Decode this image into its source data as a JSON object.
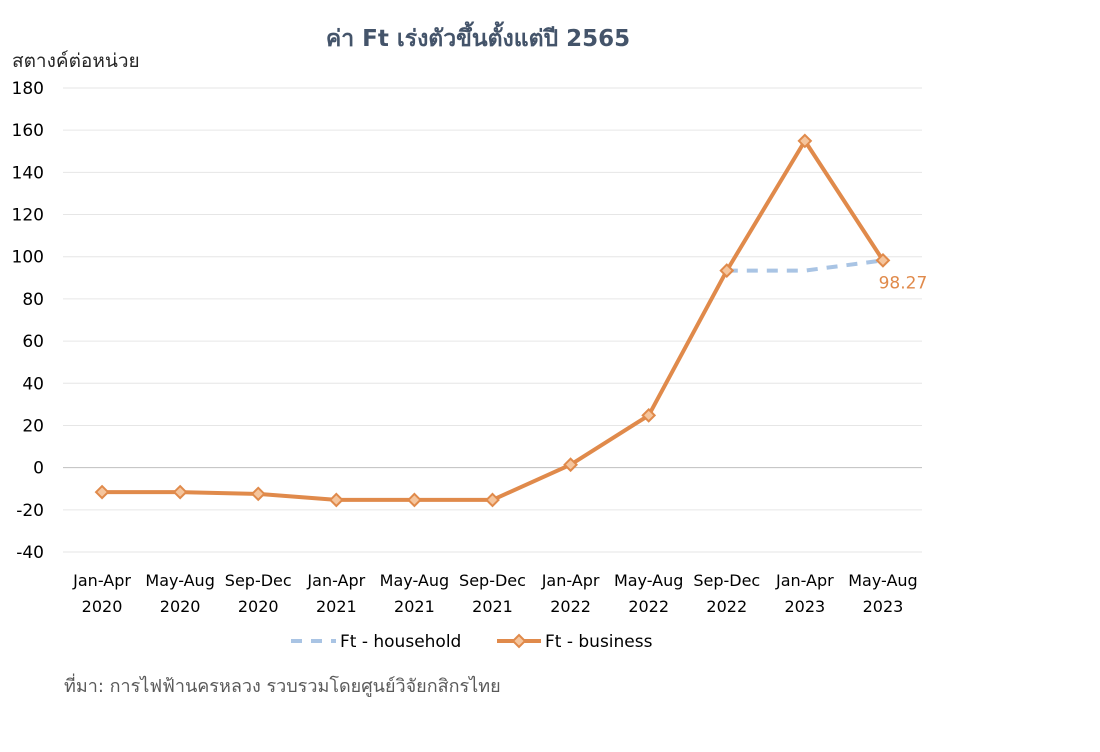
{
  "chart_data": {
    "type": "line",
    "title": "ค่า Ft เร่งตัวขึ้นตั้งแต่ปี 2565",
    "ylabel": "สตางค์ต่อหน่วย",
    "ylim": [
      -40,
      180
    ],
    "yticks": [
      -40,
      -20,
      0,
      20,
      40,
      60,
      80,
      100,
      120,
      140,
      160,
      180
    ],
    "grid": true,
    "legend_position": "bottom",
    "categories": [
      [
        "Jan-Apr",
        "2020"
      ],
      [
        "May-Aug",
        "2020"
      ],
      [
        "Sep-Dec",
        "2020"
      ],
      [
        "Jan-Apr",
        "2021"
      ],
      [
        "May-Aug",
        "2021"
      ],
      [
        "Sep-Dec",
        "2021"
      ],
      [
        "Jan-Apr",
        "2022"
      ],
      [
        "May-Aug",
        "2022"
      ],
      [
        "Sep-Dec",
        "2022"
      ],
      [
        "Jan-Apr",
        "2023"
      ],
      [
        "May-Aug",
        "2023"
      ]
    ],
    "series": [
      {
        "name": "Ft - household",
        "color": "#a9c4e4",
        "style": "dashed",
        "values": [
          null,
          null,
          null,
          null,
          null,
          null,
          null,
          null,
          93.43,
          93.43,
          98.27
        ]
      },
      {
        "name": "Ft - business",
        "color": "#e08a4b",
        "style": "solid-diamond",
        "values": [
          -11.6,
          -11.6,
          -12.43,
          -15.32,
          -15.32,
          -15.32,
          1.39,
          24.77,
          93.43,
          154.92,
          98.27
        ]
      }
    ],
    "annotations": [
      {
        "series": 1,
        "index": 10,
        "text": "98.27"
      }
    ],
    "source": "ที่มา: การไฟฟ้านครหลวง รวบรวมโดยศูนย์วิจัยกสิกรไทย"
  }
}
